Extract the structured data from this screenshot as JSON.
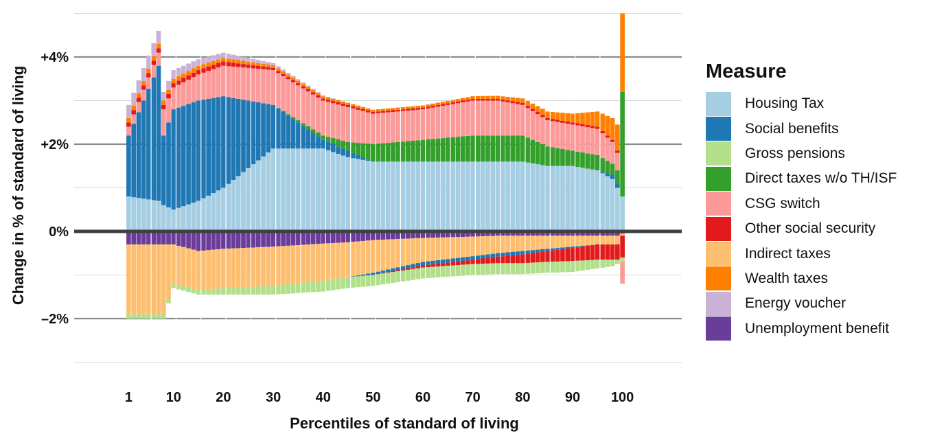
{
  "chart_data": {
    "type": "bar",
    "subtype": "stacked diverging bar",
    "xlabel": "Percentiles of standard of living",
    "ylabel": "Change in % of standard of living",
    "x_tick_labels": [
      "1",
      "10",
      "20",
      "30",
      "40",
      "50",
      "60",
      "70",
      "80",
      "90",
      "100"
    ],
    "x_tick_values": [
      1,
      10,
      20,
      30,
      40,
      50,
      60,
      70,
      80,
      90,
      100
    ],
    "y_tick_labels": [
      "+4%",
      "+2%",
      "0%",
      "–2%"
    ],
    "y_tick_values": [
      4,
      2,
      0,
      -2
    ],
    "ylim": [
      -3.0,
      5.0
    ],
    "xlim": [
      -4,
      112
    ],
    "grid": true,
    "legend_title": "Measure",
    "legend_position": "right",
    "anchors_x": [
      1,
      7,
      8,
      10,
      15,
      20,
      30,
      40,
      45,
      50,
      60,
      70,
      75,
      80,
      85,
      90,
      95,
      98,
      99,
      100
    ],
    "series": [
      {
        "name": "Housing Tax",
        "color": "#a6cee3",
        "values": [
          0.8,
          0.7,
          0.6,
          0.5,
          0.7,
          1.0,
          1.9,
          1.9,
          1.7,
          1.6,
          1.6,
          1.6,
          1.6,
          1.6,
          1.5,
          1.5,
          1.4,
          1.2,
          1.0,
          0.8
        ]
      },
      {
        "name": "Social benefits",
        "color": "#1f78b4",
        "values": [
          1.4,
          3.1,
          1.6,
          2.3,
          2.3,
          2.1,
          1.0,
          0.2,
          0.15,
          0.0,
          0.0,
          0.0,
          0.0,
          0.0,
          0.0,
          0.0,
          0.0,
          0.1,
          0.1,
          0.0
        ]
      },
      {
        "name": "Direct taxes w/o TH/ISF",
        "color": "#33a02c",
        "values": [
          0.0,
          0.0,
          0.0,
          0.0,
          0.0,
          0.0,
          0.0,
          0.1,
          0.2,
          0.4,
          0.5,
          0.6,
          0.6,
          0.6,
          0.45,
          0.35,
          0.35,
          0.25,
          0.3,
          2.4
        ]
      },
      {
        "name": "CSG switch",
        "color": "#fb9a99",
        "values": [
          0.2,
          0.3,
          0.6,
          0.5,
          0.6,
          0.7,
          0.8,
          0.8,
          0.8,
          0.7,
          0.7,
          0.8,
          0.8,
          0.7,
          0.6,
          0.6,
          0.6,
          0.5,
          0.4,
          0.0
        ]
      },
      {
        "name": "Other social security",
        "color": "#e31a1c",
        "values": [
          0.1,
          0.1,
          0.1,
          0.1,
          0.1,
          0.1,
          0.05,
          0.05,
          0.05,
          0.04,
          0.04,
          0.04,
          0.04,
          0.05,
          0.05,
          0.05,
          0.05,
          0.05,
          0.05,
          0.0
        ]
      },
      {
        "name": "Wealth taxes",
        "color": "#ff7f00",
        "values": [
          0.1,
          0.1,
          0.1,
          0.1,
          0.1,
          0.08,
          0.06,
          0.05,
          0.05,
          0.05,
          0.05,
          0.06,
          0.07,
          0.1,
          0.15,
          0.2,
          0.35,
          0.5,
          0.6,
          1.8
        ]
      },
      {
        "name": "Energy voucher",
        "color": "#cab2d6",
        "values": [
          0.3,
          0.3,
          0.2,
          0.2,
          0.15,
          0.12,
          0.05,
          0.02,
          0.0,
          0.0,
          0.0,
          0.0,
          0.0,
          0.0,
          0.0,
          0.0,
          0.0,
          0.0,
          0.0,
          0.0
        ]
      },
      {
        "name": "Unemployment benefit",
        "color": "#6a3d9a",
        "values": [
          -0.3,
          -0.3,
          -0.3,
          -0.3,
          -0.45,
          -0.4,
          -0.35,
          -0.28,
          -0.25,
          -0.2,
          -0.15,
          -0.12,
          -0.1,
          -0.1,
          -0.1,
          -0.1,
          -0.1,
          -0.1,
          -0.1,
          -0.05
        ]
      },
      {
        "name": "Indirect taxes",
        "color": "#fdbf6f",
        "values": [
          -1.6,
          -1.6,
          -1.6,
          -0.9,
          -0.9,
          -0.9,
          -0.9,
          -0.85,
          -0.8,
          -0.75,
          -0.55,
          -0.45,
          -0.4,
          -0.35,
          -0.3,
          -0.25,
          -0.2,
          -0.2,
          -0.2,
          -0.05
        ]
      },
      {
        "name": "Social benefits (negative)",
        "color": "#1f78b4",
        "values": [
          0.0,
          0.0,
          0.0,
          0.0,
          0.0,
          0.0,
          0.0,
          0.0,
          0.0,
          -0.05,
          -0.08,
          -0.08,
          -0.08,
          -0.08,
          -0.05,
          -0.03,
          0.0,
          0.0,
          0.0,
          0.0
        ]
      },
      {
        "name": "Other social security (negative)",
        "color": "#e31a1c",
        "values": [
          0.0,
          0.0,
          0.0,
          0.0,
          0.0,
          0.0,
          0.0,
          0.0,
          0.0,
          0.0,
          -0.05,
          -0.1,
          -0.15,
          -0.2,
          -0.25,
          -0.3,
          -0.35,
          -0.35,
          -0.35,
          -0.5
        ]
      },
      {
        "name": "Gross pensions",
        "color": "#b2df8a",
        "values": [
          -0.1,
          -0.1,
          -0.1,
          -0.1,
          -0.1,
          -0.15,
          -0.2,
          -0.25,
          -0.25,
          -0.25,
          -0.25,
          -0.25,
          -0.25,
          -0.25,
          -0.25,
          -0.25,
          -0.2,
          -0.15,
          -0.1,
          -0.1
        ]
      },
      {
        "name": "CSG switch (negative)",
        "color": "#fb9a99",
        "values": [
          0.0,
          0.0,
          0.0,
          0.0,
          0.0,
          0.0,
          0.0,
          0.0,
          0.0,
          0.0,
          0.0,
          0.0,
          0.0,
          0.0,
          0.0,
          0.0,
          0.0,
          0.0,
          0.0,
          -0.5
        ]
      }
    ]
  },
  "legend_items": [
    {
      "label": "Housing Tax",
      "color": "#a6cee3"
    },
    {
      "label": "Social benefits",
      "color": "#1f78b4"
    },
    {
      "label": "Gross pensions",
      "color": "#b2df8a"
    },
    {
      "label": "Direct taxes w/o TH/ISF",
      "color": "#33a02c"
    },
    {
      "label": "CSG switch",
      "color": "#fb9a99"
    },
    {
      "label": "Other social security",
      "color": "#e31a1c"
    },
    {
      "label": "Indirect taxes",
      "color": "#fdbf6f"
    },
    {
      "label": "Wealth taxes",
      "color": "#ff7f00"
    },
    {
      "label": "Energy voucher",
      "color": "#cab2d6"
    },
    {
      "label": "Unemployment benefit",
      "color": "#6a3d9a"
    }
  ]
}
